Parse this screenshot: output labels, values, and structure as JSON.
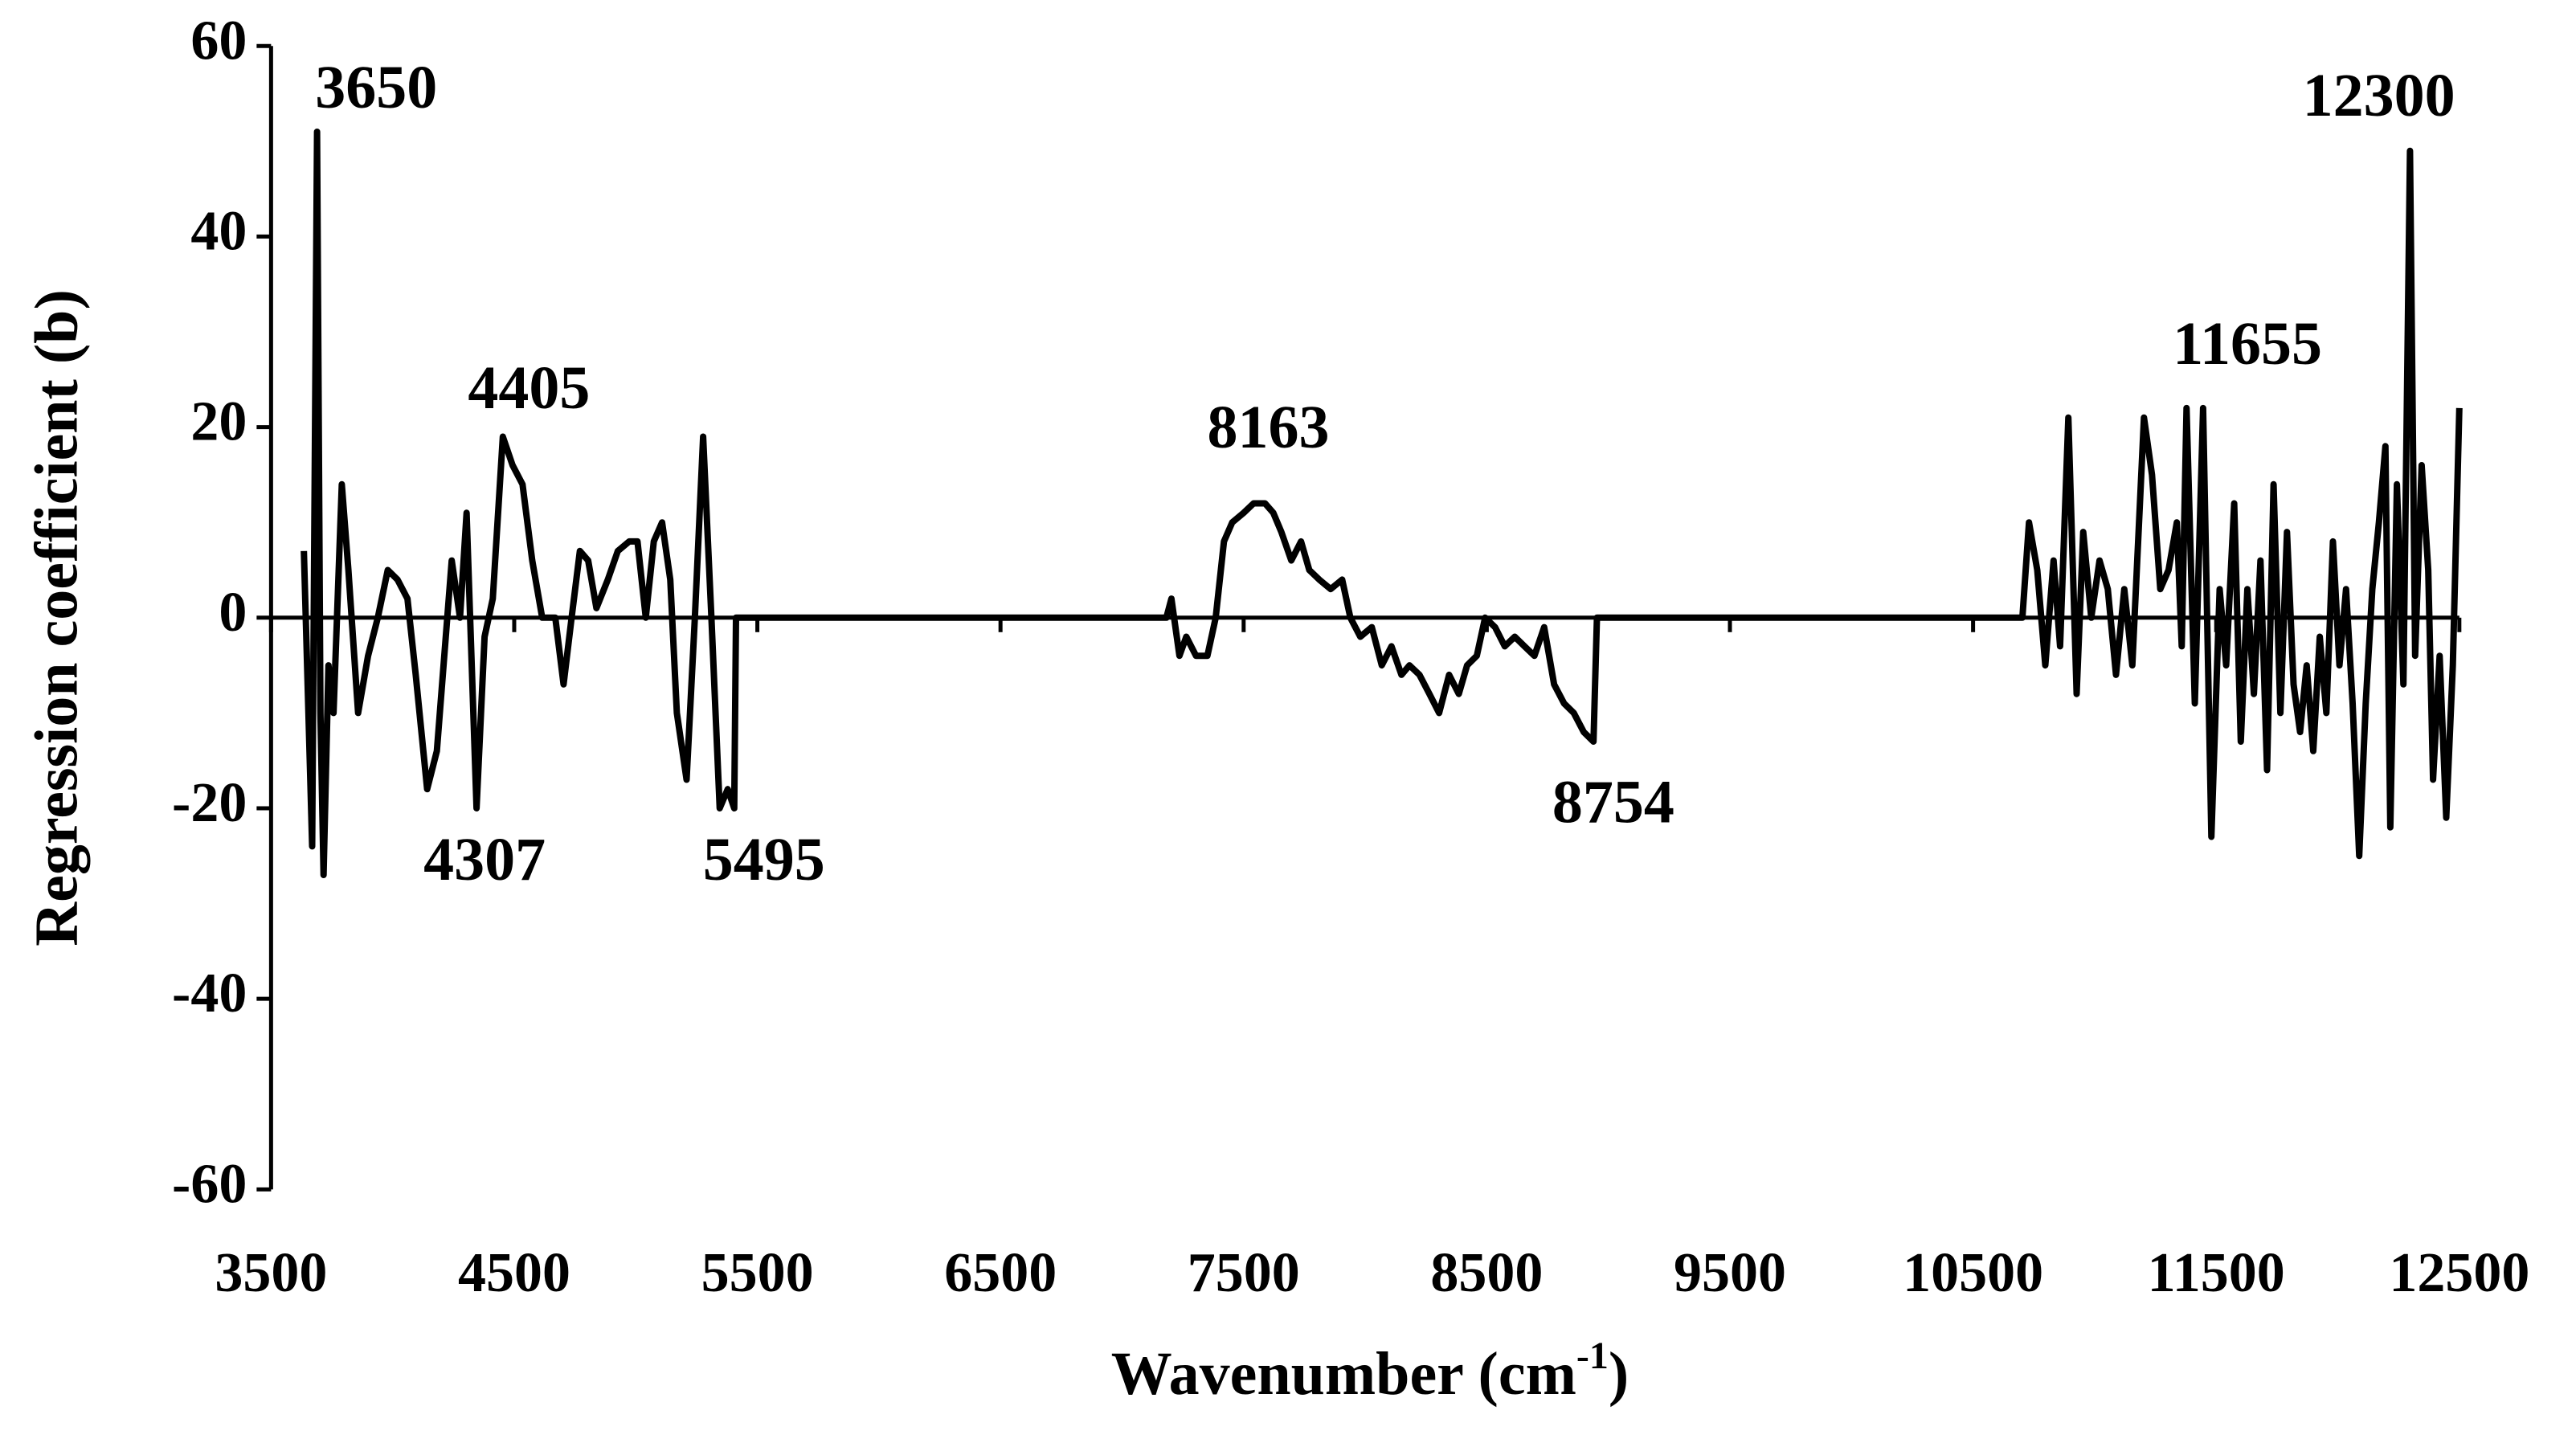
{
  "chart_data": {
    "type": "line",
    "x_label": {
      "text": "Wavenumber (cm",
      "sup": "-1",
      "close": ")"
    },
    "y_label": "Regression coefficient (b)",
    "xlim": [
      3500,
      12500
    ],
    "xticks": [
      3500,
      4500,
      5500,
      6500,
      7500,
      8500,
      9500,
      10500,
      11500,
      12500
    ],
    "ylim": [
      -60,
      60
    ],
    "yticks": [
      -60,
      -40,
      -20,
      0,
      20,
      40,
      60
    ],
    "grid": false,
    "annotations": [
      "3650",
      "4405",
      "4307",
      "5495",
      "8163",
      "8754",
      "11655",
      "12300"
    ],
    "series": [
      {
        "color": "#000000",
        "x": [
          3635,
          3669,
          3689,
          3703,
          3716,
          3736,
          3757,
          3791,
          3818,
          3858,
          3899,
          3939,
          3980,
          4020,
          4061,
          4095,
          4142,
          4182,
          4243,
          4277,
          4304,
          4345,
          4378,
          4412,
          4453,
          4493,
          4534,
          4574,
          4615,
          4669,
          4703,
          4736,
          4770,
          4804,
          4838,
          4885,
          4926,
          4973,
          5007,
          5041,
          5074,
          5108,
          5142,
          5169,
          5209,
          5243,
          5277,
          5311,
          5345,
          5378,
          5405,
          5412,
          7182,
          7203,
          7236,
          7264,
          7304,
          7351,
          7385,
          7419,
          7453,
          7500,
          7541,
          7588,
          7622,
          7655,
          7696,
          7736,
          7770,
          7811,
          7858,
          7905,
          7939,
          7980,
          8027,
          8068,
          8108,
          8149,
          8182,
          8223,
          8264,
          8304,
          8345,
          8385,
          8419,
          8459,
          8493,
          8534,
          8574,
          8615,
          8655,
          8696,
          8736,
          8777,
          8818,
          8858,
          8899,
          8939,
          8953,
          10703,
          10730,
          10764,
          10797,
          10831,
          10858,
          10892,
          10926,
          10953,
          10986,
          11020,
          11054,
          11088,
          11122,
          11155,
          11203,
          11236,
          11270,
          11304,
          11338,
          11358,
          11378,
          11412,
          11446,
          11480,
          11514,
          11541,
          11574,
          11601,
          11628,
          11655,
          11682,
          11709,
          11736,
          11764,
          11791,
          11818,
          11845,
          11872,
          11899,
          11926,
          11953,
          11980,
          12007,
          12034,
          12061,
          12088,
          12115,
          12142,
          12169,
          12196,
          12216,
          12243,
          12270,
          12297,
          12318,
          12345,
          12372,
          12392,
          12419,
          12446,
          12473,
          12500
        ],
        "values": [
          7,
          -24,
          51,
          -10,
          -27,
          -5,
          -10,
          14,
          5,
          -10,
          -4,
          0,
          5,
          4,
          2,
          -6,
          -18,
          -14,
          6,
          0,
          11,
          -20,
          -2,
          2,
          19,
          16,
          14,
          6,
          0,
          0,
          -7,
          0,
          7,
          6,
          1,
          4,
          7,
          8,
          8,
          0,
          8,
          10,
          4,
          -10,
          -17,
          0,
          19,
          0,
          -20,
          -18,
          -20,
          0,
          0,
          2,
          -4,
          -2,
          -4,
          -4,
          0,
          8,
          10,
          11,
          12,
          12,
          11,
          9,
          6,
          8,
          5,
          4,
          3,
          4,
          0,
          -2,
          -1,
          -5,
          -3,
          -6,
          -5,
          -6,
          -8,
          -10,
          -6,
          -8,
          -5,
          -4,
          0,
          -1,
          -3,
          -2,
          -3,
          -4,
          -1,
          -7,
          -9,
          -10,
          -12,
          -13,
          0,
          0,
          10,
          5,
          -5,
          6,
          -3,
          21,
          -8,
          9,
          0,
          6,
          3,
          -6,
          3,
          -5,
          21,
          15,
          3,
          5,
          10,
          -3,
          22,
          -9,
          22,
          -23,
          3,
          -5,
          12,
          -13,
          3,
          -8,
          6,
          -16,
          14,
          -10,
          9,
          -7,
          -12,
          -5,
          -14,
          -2,
          -10,
          8,
          -5,
          3,
          -9,
          -25,
          -9,
          3,
          10,
          18,
          -22,
          14,
          -7,
          49,
          -4,
          16,
          5,
          -17,
          -4,
          -21,
          -5,
          22
        ]
      }
    ]
  }
}
